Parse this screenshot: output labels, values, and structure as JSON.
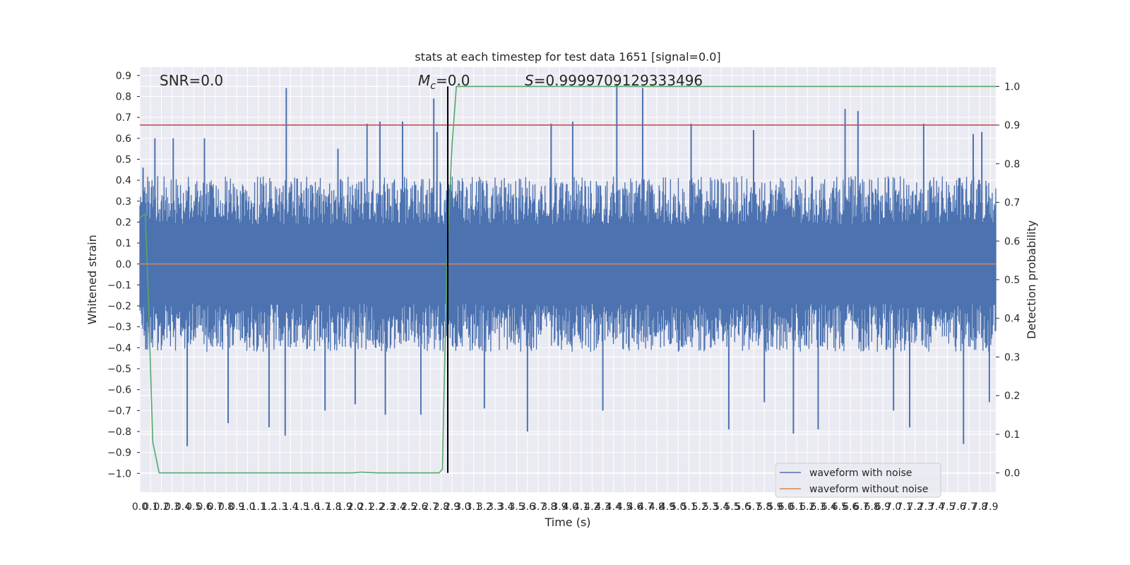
{
  "chart_data": {
    "type": "line",
    "title": "stats at each timestep for test data 1651 [signal=0.0]",
    "xlabel": "Time (s)",
    "ylabel": "Whitened strain",
    "y2label": "Detection probability",
    "xlim": [
      0.0,
      7.95
    ],
    "ylim": [
      -1.09,
      0.94
    ],
    "y2lim": [
      -0.05,
      1.05
    ],
    "x_ticks": [
      0.0,
      0.1,
      0.2,
      0.3,
      0.4,
      0.5,
      0.6,
      0.7,
      0.8,
      0.9,
      1.0,
      1.1,
      1.2,
      1.3,
      1.4,
      1.5,
      1.6,
      1.7,
      1.8,
      1.9,
      2.0,
      2.1,
      2.2,
      2.3,
      2.4,
      2.5,
      2.6,
      2.7,
      2.8,
      2.9,
      3.0,
      3.1,
      3.2,
      3.3,
      3.4,
      3.5,
      3.6,
      3.7,
      3.8,
      3.9,
      4.0,
      4.1,
      4.2,
      4.3,
      4.4,
      4.5,
      4.6,
      4.7,
      4.8,
      4.9,
      5.0,
      5.1,
      5.2,
      5.3,
      5.4,
      5.5,
      5.6,
      5.7,
      5.8,
      5.9,
      6.0,
      6.1,
      6.2,
      6.3,
      6.4,
      6.5,
      6.6,
      6.7,
      6.8,
      6.9,
      7.0,
      7.1,
      7.2,
      7.3,
      7.4,
      7.5,
      7.6,
      7.7,
      7.8,
      7.9
    ],
    "y_ticks": [
      -1.0,
      -0.9,
      -0.8,
      -0.7,
      -0.6,
      -0.5,
      -0.4,
      -0.3,
      -0.2,
      -0.1,
      0.0,
      0.1,
      0.2,
      0.3,
      0.4,
      0.5,
      0.6,
      0.7,
      0.8,
      0.9
    ],
    "y2_ticks": [
      0.0,
      0.1,
      0.2,
      0.3,
      0.4,
      0.5,
      0.6,
      0.7,
      0.8,
      0.9,
      1.0
    ],
    "grid": true,
    "legend_position": "bottom-right",
    "annotations": {
      "snr": "SNR=0.0",
      "mc_symbol": "M",
      "mc_sub": "c",
      "mc_value": "=0.0",
      "s_symbol": "S",
      "s_value": "=0.9999709129333496"
    },
    "series": [
      {
        "name": "waveform with noise",
        "color": "#4c72b0",
        "axis": "left",
        "envelope": {
          "upper_typical": 0.42,
          "lower_typical": -0.42,
          "peaks": [
            {
              "x": 0.03,
              "y": 0.46
            },
            {
              "x": 0.14,
              "y": 0.6
            },
            {
              "x": 0.31,
              "y": 0.6
            },
            {
              "x": 0.44,
              "y": -0.87
            },
            {
              "x": 0.6,
              "y": 0.6
            },
            {
              "x": 0.82,
              "y": -0.76
            },
            {
              "x": 1.2,
              "y": -0.78
            },
            {
              "x": 1.36,
              "y": 0.84
            },
            {
              "x": 1.35,
              "y": -0.82
            },
            {
              "x": 1.72,
              "y": -0.7
            },
            {
              "x": 1.84,
              "y": 0.55
            },
            {
              "x": 2.0,
              "y": -0.67
            },
            {
              "x": 2.11,
              "y": 0.67
            },
            {
              "x": 2.23,
              "y": 0.68
            },
            {
              "x": 2.28,
              "y": -0.72
            },
            {
              "x": 2.44,
              "y": 0.68
            },
            {
              "x": 2.61,
              "y": -0.72
            },
            {
              "x": 2.73,
              "y": 0.79
            },
            {
              "x": 2.76,
              "y": 0.63
            },
            {
              "x": 3.2,
              "y": -0.69
            },
            {
              "x": 3.6,
              "y": -0.8
            },
            {
              "x": 3.82,
              "y": 0.67
            },
            {
              "x": 4.02,
              "y": 0.68
            },
            {
              "x": 4.3,
              "y": -0.7
            },
            {
              "x": 4.43,
              "y": 0.86
            },
            {
              "x": 4.67,
              "y": 0.84
            },
            {
              "x": 5.12,
              "y": 0.67
            },
            {
              "x": 5.47,
              "y": -0.79
            },
            {
              "x": 5.7,
              "y": 0.64
            },
            {
              "x": 5.8,
              "y": -0.66
            },
            {
              "x": 6.07,
              "y": -0.81
            },
            {
              "x": 6.3,
              "y": -0.79
            },
            {
              "x": 6.55,
              "y": 0.74
            },
            {
              "x": 6.67,
              "y": 0.73
            },
            {
              "x": 7.0,
              "y": -0.7
            },
            {
              "x": 7.15,
              "y": -0.78
            },
            {
              "x": 7.28,
              "y": 0.67
            },
            {
              "x": 7.65,
              "y": -0.86
            },
            {
              "x": 7.74,
              "y": 0.62
            },
            {
              "x": 7.82,
              "y": 0.63
            },
            {
              "x": 7.89,
              "y": -0.66
            }
          ]
        }
      },
      {
        "name": "waveform without noise",
        "color": "#dd8452",
        "axis": "left",
        "x": [
          0.0,
          7.95
        ],
        "y": [
          0.0,
          0.0
        ]
      },
      {
        "name": "detection probability",
        "color": "#55a868",
        "axis": "right",
        "x": [
          0.0,
          0.05,
          0.08,
          0.12,
          0.18,
          1.0,
          1.8,
          1.98,
          2.05,
          2.2,
          2.65,
          2.78,
          2.81,
          2.84,
          2.86,
          2.9,
          2.94,
          3.0,
          7.95
        ],
        "y": [
          0.66,
          0.67,
          0.45,
          0.08,
          0.0,
          0.0,
          0.0,
          0.0,
          0.002,
          0.0,
          0.0,
          0.0,
          0.01,
          0.4,
          0.6,
          0.85,
          1.0,
          1.0,
          1.0
        ]
      }
    ],
    "reference_lines": {
      "threshold_red": {
        "axis": "right",
        "y": 0.9,
        "color": "#c44e52"
      },
      "vertical_black": {
        "x": 2.86,
        "color": "#000000"
      }
    }
  }
}
